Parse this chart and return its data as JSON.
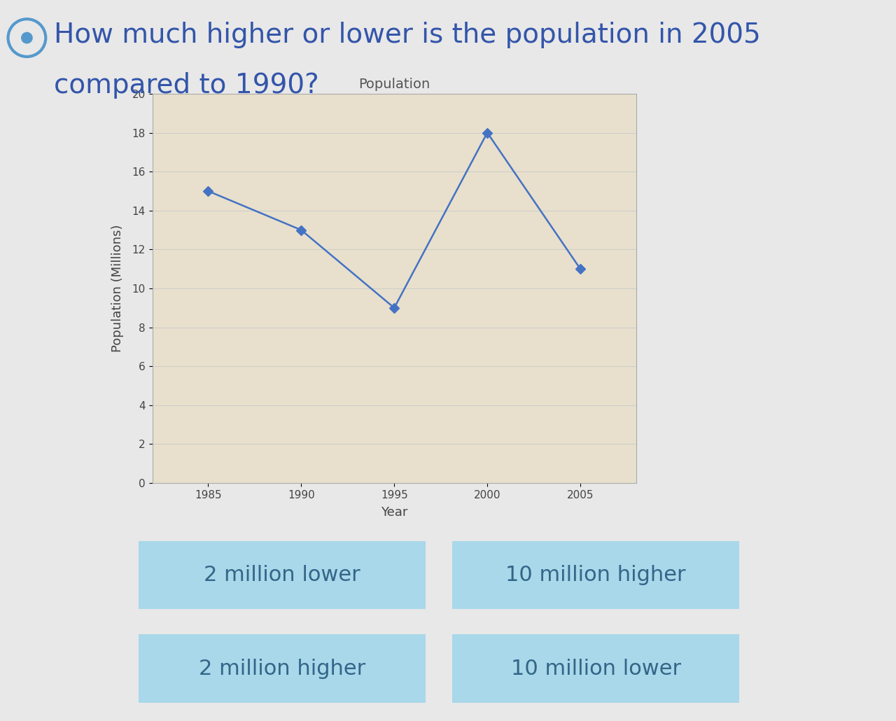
{
  "question_text_line1": "How much higher or lower is the population in 2005",
  "question_text_line2": "compared to 1990?",
  "chart_title": "Population",
  "xlabel": "Year",
  "ylabel": "Population (Millions)",
  "years": [
    1985,
    1990,
    1995,
    2000,
    2005
  ],
  "population": [
    15,
    13,
    9,
    18,
    11
  ],
  "ylim": [
    0,
    20
  ],
  "yticks": [
    0,
    2,
    4,
    6,
    8,
    10,
    12,
    14,
    16,
    18,
    20
  ],
  "line_color": "#4472C4",
  "marker_color": "#4472C4",
  "plot_bg_color": "#E8E0CC",
  "fig_bg_color": "#E8E8E8",
  "grid_color": "#CCCCCC",
  "answer_options": [
    "2 million lower",
    "10 million higher",
    "2 million higher",
    "10 million lower"
  ],
  "answer_btn_color": "#A8D8EA",
  "answer_text_color": "#336688",
  "question_color": "#3355AA",
  "icon_color": "#5599CC",
  "tick_fontsize": 11,
  "label_fontsize": 13,
  "title_fontsize": 14,
  "question_fontsize": 28,
  "btn_fontsize": 22
}
